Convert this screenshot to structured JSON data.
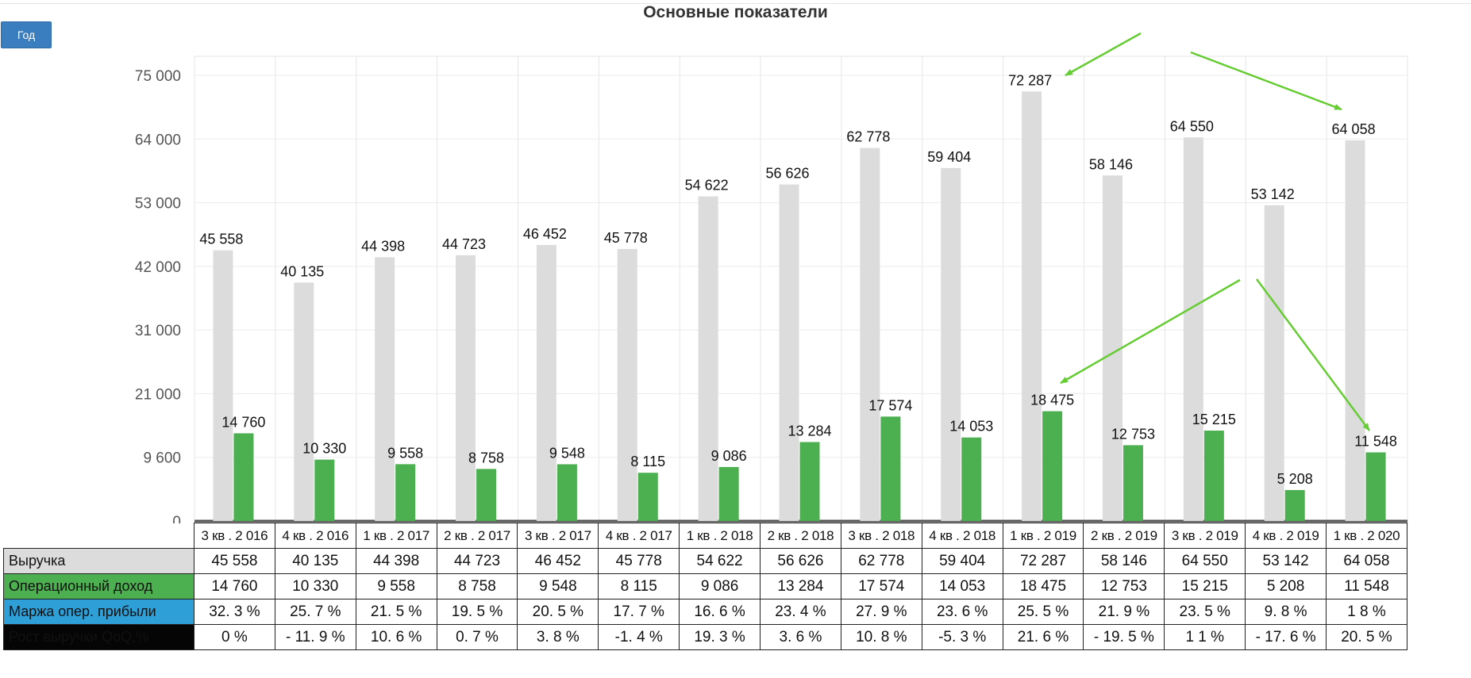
{
  "controls": {
    "year_button": "Год"
  },
  "chart_data": {
    "type": "bar",
    "title": "Основные показатели",
    "categories": [
      "3 кв . 2 016",
      "4 кв . 2 016",
      "1 кв . 2 017",
      "2 кв . 2 017",
      "3 кв . 2 017",
      "4 кв . 2 017",
      "1 кв . 2 018",
      "2 кв . 2 018",
      "3 кв . 2 018",
      "4 кв . 2 018",
      "1 кв . 2 019",
      "2 кв . 2 019",
      "3 кв . 2 019",
      "4 кв . 2 019",
      "1 кв . 2 020"
    ],
    "series": [
      {
        "name": "Выручка",
        "color": "#dcdcdc",
        "values": [
          45558,
          40135,
          44398,
          44723,
          46452,
          45778,
          54622,
          56626,
          62778,
          59404,
          72287,
          58146,
          64550,
          53142,
          64058
        ],
        "labels": [
          "45 558",
          "40 135",
          "44 398",
          "44 723",
          "46 452",
          "45 778",
          "54 622",
          "56 626",
          "62 778",
          "59 404",
          "72 287",
          "58 146",
          "64 550",
          "53 142",
          "64 058"
        ]
      },
      {
        "name": "Операционный доход",
        "color": "#4caf50",
        "values": [
          14760,
          10330,
          9558,
          8758,
          9548,
          8115,
          9086,
          13284,
          17574,
          14053,
          18475,
          12753,
          15215,
          5208,
          11548
        ],
        "labels": [
          "14 760",
          "10 330",
          "9 558",
          "8 758",
          "9 548",
          "8 115",
          "9 086",
          "13 284",
          "17 574",
          "14 053",
          "18 475",
          "12 753",
          "15 215",
          "5 208",
          "11 548"
        ]
      }
    ],
    "yticks": [
      "75 000",
      "64 000",
      "53 000",
      "42 000",
      "31 000",
      "21 000",
      "9 600",
      "0"
    ],
    "ylim": [
      0,
      75000
    ],
    "grid": true,
    "legend": "table-below"
  },
  "table": {
    "rows": [
      {
        "label": "Выручка",
        "style": "lab-rev",
        "cells": [
          "45 558",
          "40 135",
          "44 398",
          "44 723",
          "46 452",
          "45 778",
          "54 622",
          "56 626",
          "62 778",
          "59 404",
          "72 287",
          "58 146",
          "64 550",
          "53 142",
          "64 058"
        ]
      },
      {
        "label": "Операционный доход",
        "style": "lab-op",
        "cells": [
          "14 760",
          "10 330",
          "9 558",
          "8 758",
          "9 548",
          "8 115",
          "9 086",
          "13 284",
          "17 574",
          "14 053",
          "18 475",
          "12 753",
          "15 215",
          "5 208",
          "11 548"
        ]
      },
      {
        "label": "Маржа опер. прибыли",
        "style": "lab-mar",
        "cells": [
          "32. 3 %",
          "25. 7 %",
          "21. 5 %",
          "19. 5 %",
          "20. 5 %",
          "17. 7 %",
          "16. 6 %",
          "23. 4 %",
          "27. 9 %",
          "23. 6 %",
          "25. 5 %",
          "21. 9 %",
          "23. 5 %",
          "9. 8 %",
          "1 8 %"
        ]
      },
      {
        "label": "Рост выручки QoQ,%",
        "style": "lab-gro",
        "cells": [
          "0 %",
          "- 11. 9 %",
          "10. 6 %",
          "0. 7 %",
          "3. 8 %",
          "-1. 4 %",
          "19. 3 %",
          "3. 6 %",
          "10. 8 %",
          "-5. 3 %",
          "21. 6 %",
          "- 19. 5 %",
          "1 1 %",
          "- 17. 6 %",
          "20. 5 %"
        ]
      }
    ]
  },
  "annotations": {
    "arrow_color": "#66cc33"
  }
}
